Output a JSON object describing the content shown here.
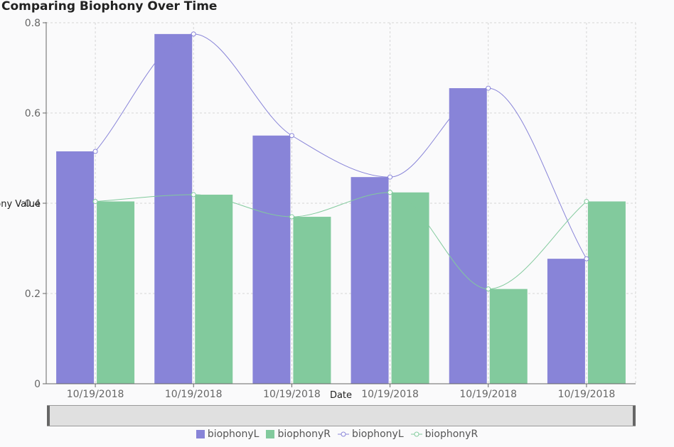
{
  "chart_data": {
    "type": "bar",
    "title": "Comparing Biophony Over Time",
    "xlabel": "Date",
    "ylabel": "Biophony Value",
    "categories": [
      "10/19/2018",
      "10/19/2018",
      "10/19/2018",
      "10/19/2018",
      "10/19/2018",
      "10/19/2018"
    ],
    "ylim": [
      0,
      0.8
    ],
    "yticks": [
      0,
      0.2,
      0.4,
      0.6,
      0.8
    ],
    "ytick_labels": [
      "0",
      "0.2",
      "0.4",
      "0.6",
      "0.8"
    ],
    "grid": true,
    "legend_position": "bottom",
    "series": [
      {
        "name": "biophonyL",
        "kind": "bar",
        "color": "#8884d8",
        "values": [
          0.515,
          0.775,
          0.55,
          0.458,
          0.655,
          0.277
        ]
      },
      {
        "name": "biophonyR",
        "kind": "bar",
        "color": "#82ca9d",
        "values": [
          0.404,
          0.419,
          0.37,
          0.424,
          0.21,
          0.404
        ]
      },
      {
        "name": "biophonyL",
        "kind": "line",
        "color": "#8884d8",
        "values": [
          0.515,
          0.775,
          0.55,
          0.458,
          0.655,
          0.277
        ]
      },
      {
        "name": "biophonyR",
        "kind": "line",
        "color": "#82ca9d",
        "values": [
          0.404,
          0.419,
          0.37,
          0.424,
          0.21,
          0.404
        ]
      }
    ]
  }
}
